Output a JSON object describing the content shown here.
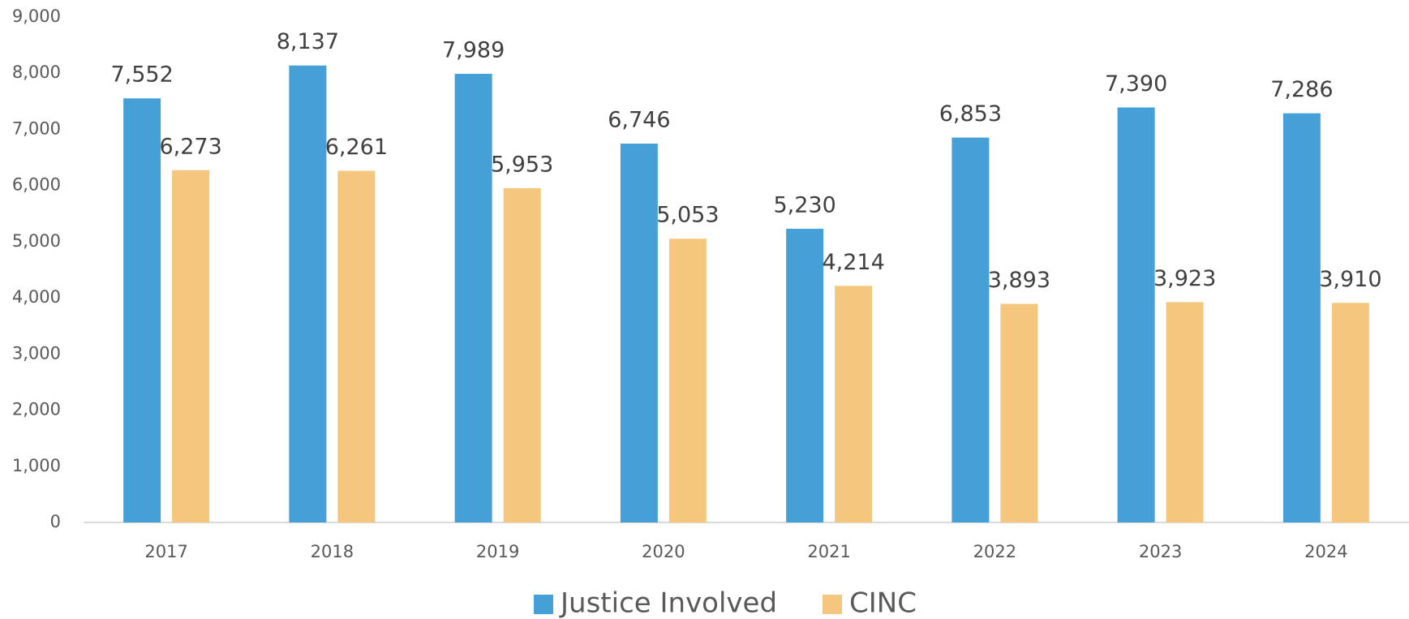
{
  "chart_data": {
    "type": "bar",
    "categories": [
      "2017",
      "2018",
      "2019",
      "2020",
      "2021",
      "2022",
      "2023",
      "2024"
    ],
    "series": [
      {
        "name": "Justice Involved",
        "color": "#46a0d8",
        "values": [
          7552,
          8137,
          7989,
          6746,
          5230,
          6853,
          7390,
          7286
        ],
        "value_labels": [
          "7,552",
          "8,137",
          "7,989",
          "6,746",
          "5,230",
          "6,853",
          "7,390",
          "7,286"
        ]
      },
      {
        "name": "CINC",
        "color": "#f5c77e",
        "values": [
          6273,
          6261,
          5953,
          5053,
          4214,
          3893,
          3923,
          3910
        ],
        "value_labels": [
          "6,273",
          "6,261",
          "5,953",
          "5,053",
          "4,214",
          "3,893",
          "3,923",
          "3,910"
        ]
      }
    ],
    "ylim": [
      0,
      9000
    ],
    "yticks": [
      0,
      {
        "value": 1000,
        "label": "1,000"
      },
      {
        "value": 2000,
        "label": "2,000"
      },
      {
        "value": 3000,
        "label": "3,000"
      },
      {
        "value": 4000,
        "label": "4,000"
      },
      {
        "value": 5000,
        "label": "5,000"
      },
      {
        "value": 6000,
        "label": "6,000"
      },
      {
        "value": 7000,
        "label": "7,000"
      },
      {
        "value": 8000,
        "label": "8,000"
      },
      {
        "value": 9000,
        "label": "9,000"
      }
    ],
    "grid": false,
    "legend": "bottom"
  }
}
